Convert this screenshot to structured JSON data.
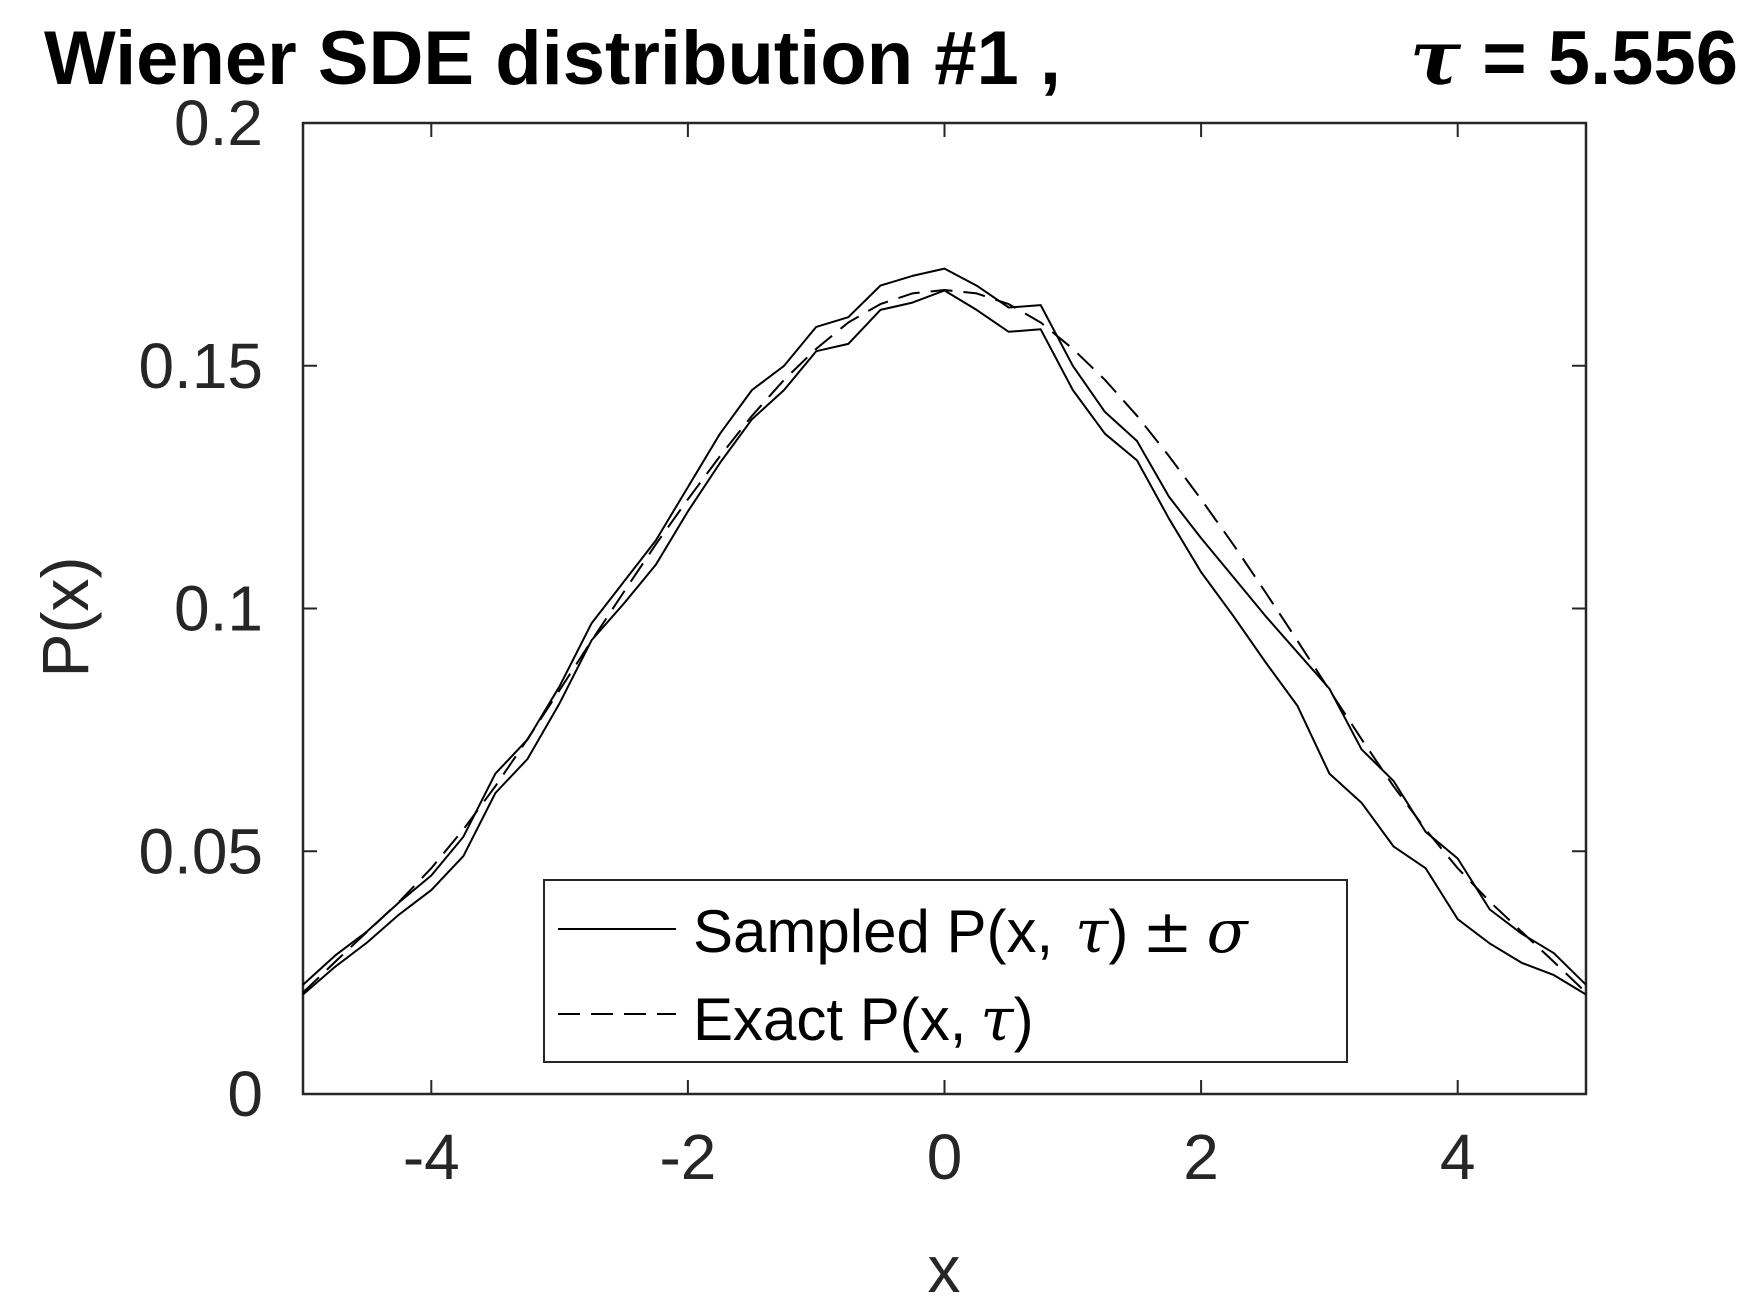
{
  "chart_data": {
    "type": "line",
    "title": "Wiener SDE distribution #1 ,",
    "title_tau_symbol": "τ",
    "title_tau_value": " = 5.556",
    "xlabel": "x",
    "ylabel": "P(x)",
    "xlim": [
      -5,
      5
    ],
    "ylim": [
      0,
      0.2
    ],
    "xticks": [
      -4,
      -2,
      0,
      2,
      4
    ],
    "xtick_labels": [
      "-4",
      "-2",
      "0",
      "2",
      "4"
    ],
    "yticks": [
      0,
      0.05,
      0.1,
      0.15,
      0.2
    ],
    "ytick_labels": [
      "0",
      "0.05",
      "0.1",
      "0.15",
      "0.2"
    ],
    "grid": false,
    "legend_position": "bottom-center",
    "legend": {
      "sampled": {
        "text": "Sampled P(x,",
        "tau": "τ",
        "close": ")",
        "pm": "±",
        "sigma": "σ"
      },
      "exact": {
        "text": "Exact  P(x,",
        "tau": "τ",
        "close": ")"
      }
    },
    "x": [
      -5.0,
      -4.75,
      -4.5,
      -4.25,
      -4.0,
      -3.75,
      -3.5,
      -3.25,
      -3.0,
      -2.75,
      -2.5,
      -2.25,
      -2.0,
      -1.75,
      -1.5,
      -1.25,
      -1.0,
      -0.75,
      -0.5,
      -0.25,
      0.0,
      0.25,
      0.5,
      0.75,
      1.0,
      1.25,
      1.5,
      1.75,
      2.0,
      2.25,
      2.5,
      2.75,
      3.0,
      3.25,
      3.5,
      3.75,
      4.0,
      4.25,
      4.5,
      4.75,
      5.0
    ],
    "series": [
      {
        "role": "sampled_upper",
        "style": "solid",
        "values": [
          0.0225,
          0.0285,
          0.0335,
          0.0395,
          0.045,
          0.053,
          0.066,
          0.073,
          0.084,
          0.097,
          0.1055,
          0.114,
          0.125,
          0.136,
          0.145,
          0.15,
          0.158,
          0.16,
          0.1665,
          0.1685,
          0.17,
          0.1665,
          0.162,
          0.1625,
          0.15,
          0.1405,
          0.1345,
          0.123,
          0.1145,
          0.1065,
          0.0985,
          0.091,
          0.0835,
          0.071,
          0.0645,
          0.054,
          0.0485,
          0.038,
          0.033,
          0.029,
          0.0225
        ]
      },
      {
        "role": "sampled_lower",
        "style": "solid",
        "values": [
          0.0205,
          0.0262,
          0.0312,
          0.037,
          0.042,
          0.049,
          0.062,
          0.069,
          0.0805,
          0.0935,
          0.101,
          0.109,
          0.12,
          0.13,
          0.139,
          0.145,
          0.153,
          0.1545,
          0.1615,
          0.163,
          0.1655,
          0.1615,
          0.157,
          0.1575,
          0.145,
          0.136,
          0.1305,
          0.1185,
          0.1075,
          0.0985,
          0.089,
          0.08,
          0.066,
          0.06,
          0.051,
          0.0465,
          0.036,
          0.031,
          0.027,
          0.0245,
          0.0205
        ]
      },
      {
        "role": "exact",
        "style": "dashed",
        "values": [
          0.0209,
          0.0272,
          0.0334,
          0.0396,
          0.0465,
          0.0545,
          0.0634,
          0.0731,
          0.0832,
          0.0934,
          0.1034,
          0.1132,
          0.1225,
          0.1314,
          0.1397,
          0.1471,
          0.1535,
          0.1589,
          0.1627,
          0.1649,
          0.1656,
          0.1649,
          0.1627,
          0.1589,
          0.1535,
          0.1471,
          0.1397,
          0.1314,
          0.1225,
          0.1132,
          0.1034,
          0.0934,
          0.0832,
          0.0731,
          0.0634,
          0.0545,
          0.0465,
          0.0396,
          0.0334,
          0.0272,
          0.0209
        ]
      }
    ]
  }
}
